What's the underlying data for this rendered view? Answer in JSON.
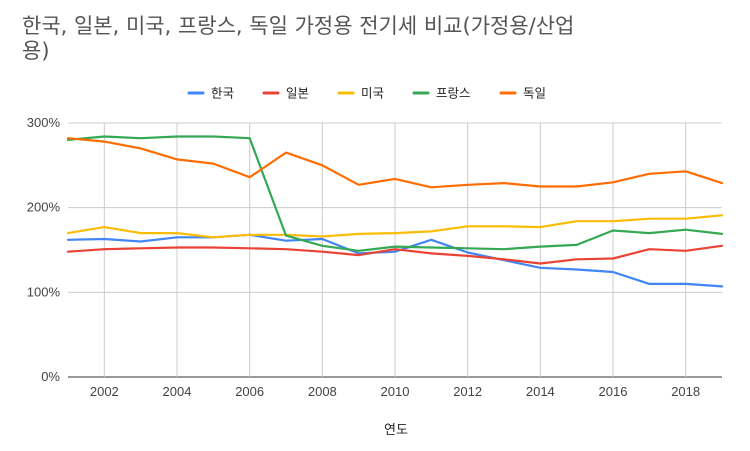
{
  "chart_data": {
    "type": "line",
    "title": "한국, 일본, 미국, 프랑스, 독일 가정용 전기세 비교(가정용/산업용)",
    "xlabel": "연도",
    "ylabel": "",
    "x": [
      2001,
      2002,
      2003,
      2004,
      2005,
      2006,
      2007,
      2008,
      2009,
      2010,
      2011,
      2012,
      2013,
      2014,
      2015,
      2016,
      2017,
      2018,
      2019
    ],
    "xticks": [
      "2002",
      "2004",
      "2006",
      "2008",
      "2010",
      "2012",
      "2014",
      "2016",
      "2018"
    ],
    "xtick_values": [
      2002,
      2004,
      2006,
      2008,
      2010,
      2012,
      2014,
      2016,
      2018
    ],
    "xlim": [
      2001,
      2019
    ],
    "yticks": [
      "0%",
      "100%",
      "200%",
      "300%"
    ],
    "ytick_values": [
      0,
      100,
      200,
      300
    ],
    "ylim": [
      0,
      300
    ],
    "grid": true,
    "legend_position": "top",
    "series": [
      {
        "name": "한국",
        "color": "#4285f4",
        "values": [
          162,
          163,
          160,
          165,
          165,
          168,
          161,
          163,
          146,
          148,
          162,
          147,
          138,
          129,
          127,
          124,
          110,
          110,
          107
        ]
      },
      {
        "name": "일본",
        "color": "#ea4335",
        "values": [
          148,
          151,
          152,
          153,
          153,
          152,
          151,
          148,
          144,
          151,
          146,
          143,
          139,
          134,
          139,
          140,
          151,
          149,
          155
        ]
      },
      {
        "name": "미국",
        "color": "#fbbc04",
        "values": [
          170,
          177,
          170,
          170,
          165,
          168,
          168,
          166,
          169,
          170,
          172,
          178,
          178,
          177,
          184,
          184,
          187,
          187,
          191
        ]
      },
      {
        "name": "프랑스",
        "color": "#34a853",
        "values": [
          280,
          284,
          282,
          284,
          284,
          282,
          167,
          155,
          149,
          154,
          153,
          152,
          151,
          154,
          156,
          173,
          170,
          174,
          169
        ]
      },
      {
        "name": "독일",
        "color": "#ff6d01",
        "values": [
          282,
          278,
          270,
          257,
          252,
          236,
          265,
          250,
          227,
          234,
          224,
          227,
          229,
          225,
          225,
          230,
          240,
          243,
          229
        ]
      }
    ]
  }
}
